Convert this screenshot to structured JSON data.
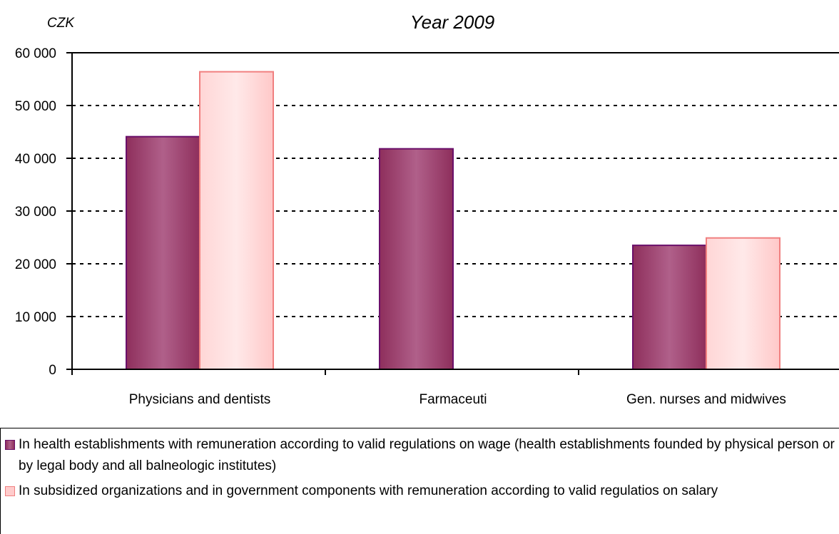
{
  "chart_data": {
    "type": "bar",
    "title": "Year 2009",
    "ylabel": "CZK",
    "xlabel": "",
    "categories": [
      "Physicians and dentists",
      "Farmaceuti",
      "Gen. nurses and midwives"
    ],
    "series": [
      {
        "name": "In health establishments with remuneration according to valid regulations on wage (health establishments founded by physical person or by legal body and all balneologic institutes)",
        "values": [
          44100,
          41800,
          23500
        ],
        "color": "#a0466f",
        "border": "#6a0f6a"
      },
      {
        "name": "In subsidized organizations and in government components with remuneration according to valid regulatios on salary",
        "values": [
          56400,
          null,
          24900
        ],
        "color": "#ffcccc",
        "border": "#f08080"
      }
    ],
    "ylim": [
      0,
      60000
    ],
    "yticks": [
      0,
      10000,
      20000,
      30000,
      40000,
      50000,
      60000
    ],
    "ytick_labels": [
      "0",
      "10 000",
      "20 000",
      "30 000",
      "40 000",
      "50 000",
      "60 000"
    ],
    "grid": true,
    "legend_position": "bottom"
  }
}
